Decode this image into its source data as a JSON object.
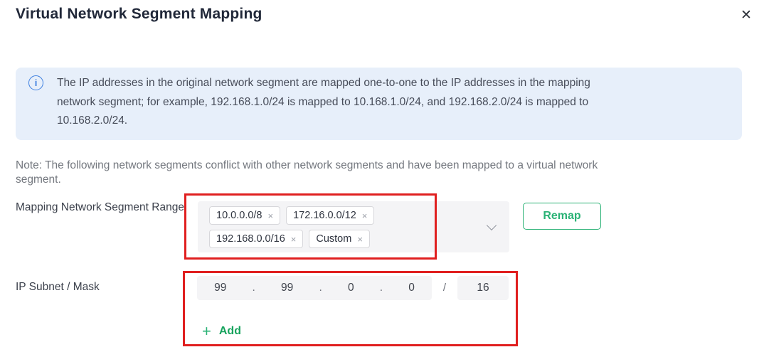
{
  "dialog": {
    "title": "Virtual Network Segment Mapping"
  },
  "icons": {
    "close": "✕",
    "info": "i",
    "tag_remove": "×",
    "add_plus": "+"
  },
  "info_banner": {
    "lines": [
      "The IP addresses in the original network segment are mapped one-to-one to the IP addresses in the mapping",
      "network segment; for example, 192.168.1.0/24 is mapped to 10.168.1.0/24, and 192.168.2.0/24 is mapped to",
      "10.168.2.0/24."
    ]
  },
  "note": {
    "lines": [
      "Note: The following network segments conflict with other network segments and have been mapped to a virtual network",
      "segment."
    ]
  },
  "mapping_segment": {
    "label": "Mapping Network Segment Range",
    "tags": [
      {
        "label": "10.0.0.0/8"
      },
      {
        "label": "172.16.0.0/12"
      },
      {
        "label": "192.168.0.0/16"
      },
      {
        "label": "Custom"
      }
    ],
    "remap_button": "Remap"
  },
  "ip_subnet": {
    "label": "IP Subnet / Mask",
    "octets": [
      "99",
      "99",
      "0",
      "0"
    ],
    "separator": ".",
    "mask_separator": "/",
    "mask": "16",
    "add_button": "Add"
  },
  "colors": {
    "accent_green": "#2bb276",
    "info_banner_bg": "#e7effa",
    "info_icon_blue": "#3d7fe0",
    "annotation_red": "#e01f1f",
    "field_bg": "#f4f4f6"
  }
}
